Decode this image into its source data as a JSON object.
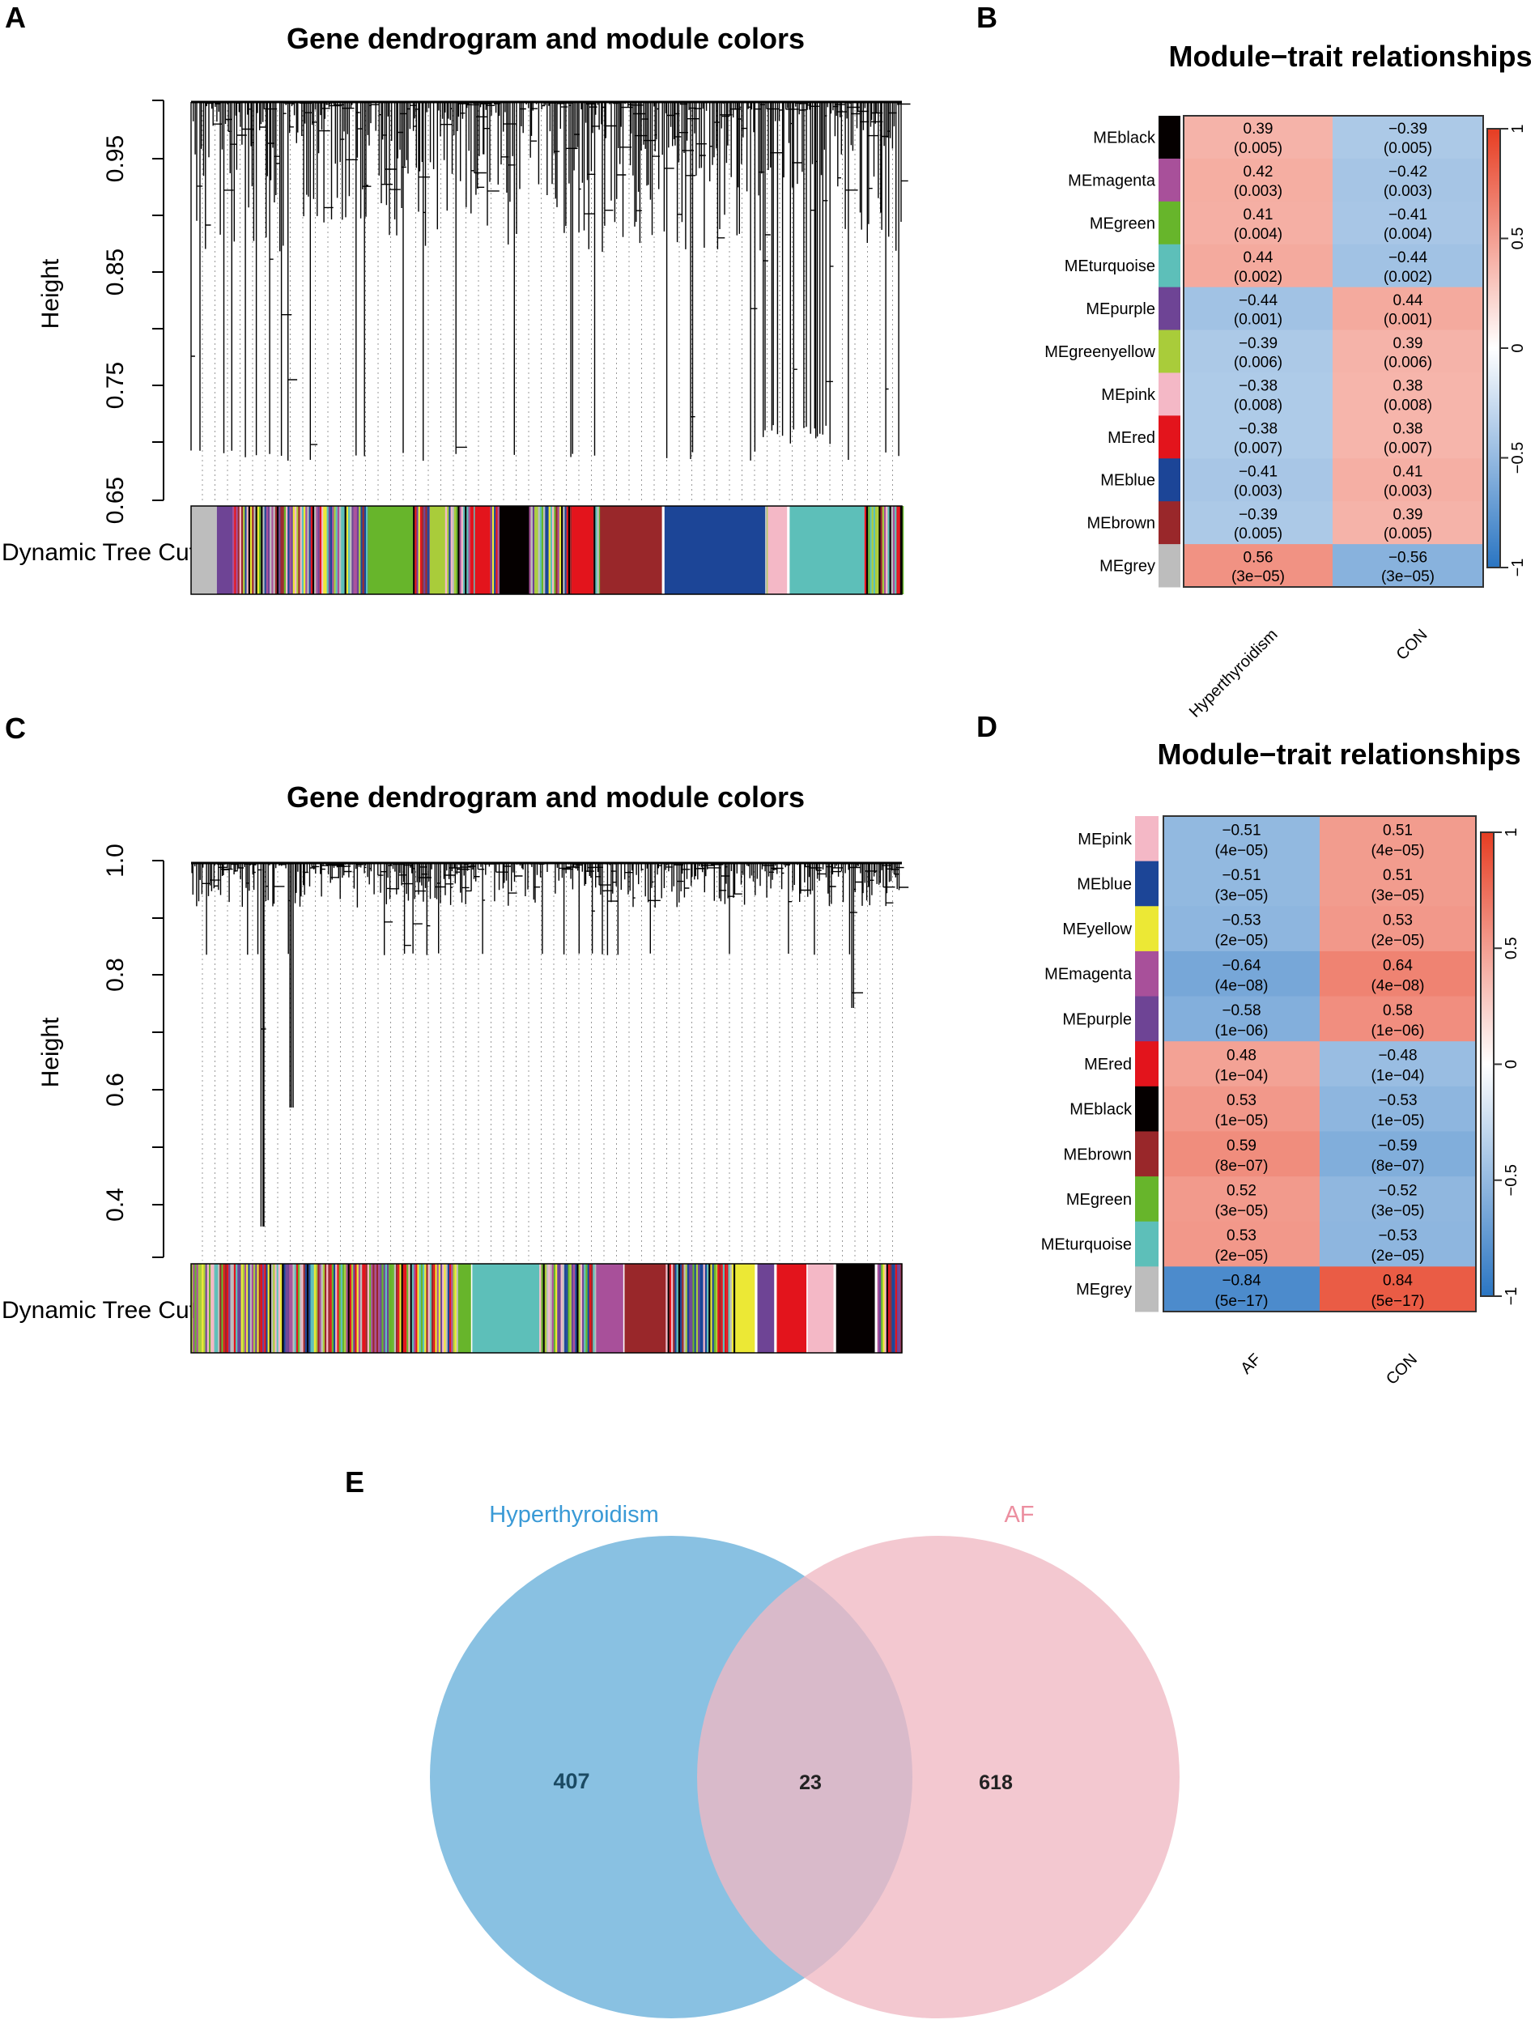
{
  "chart_data": [
    {
      "panel": "A",
      "type": "dendrogram",
      "title": "Gene dendrogram and module colors",
      "ylabel": "Height",
      "yticks": [
        "0.65",
        "0.75",
        "0.85",
        "0.95"
      ],
      "ylim": [
        0.65,
        1.0
      ],
      "colorbar_label": "Dynamic Tree Cut"
    },
    {
      "panel": "B",
      "type": "heatmap",
      "title": "Module−trait relationships",
      "columns": [
        "Hyperthyroidism",
        "CON"
      ],
      "rows": [
        {
          "module": "MEblack",
          "color": "#050000",
          "values": [
            "0.39",
            "-0.39"
          ],
          "pvalues": [
            "(0.005)",
            "(0.005)"
          ]
        },
        {
          "module": "MEmagenta",
          "color": "#a8509a",
          "values": [
            "0.42",
            "-0.42"
          ],
          "pvalues": [
            "(0.003)",
            "(0.003)"
          ]
        },
        {
          "module": "MEgreen",
          "color": "#67b52b",
          "values": [
            "0.41",
            "-0.41"
          ],
          "pvalues": [
            "(0.004)",
            "(0.004)"
          ]
        },
        {
          "module": "MEturquoise",
          "color": "#5dbfb9",
          "values": [
            "0.44",
            "-0.44"
          ],
          "pvalues": [
            "(0.002)",
            "(0.002)"
          ]
        },
        {
          "module": "MEpurple",
          "color": "#6e4495",
          "values": [
            "-0.44",
            "0.44"
          ],
          "pvalues": [
            "(0.001)",
            "(0.001)"
          ]
        },
        {
          "module": "MEgreenyellow",
          "color": "#a9cc3a",
          "values": [
            "-0.39",
            "0.39"
          ],
          "pvalues": [
            "(0.006)",
            "(0.006)"
          ]
        },
        {
          "module": "MEpink",
          "color": "#f4b8c6",
          "values": [
            "-0.38",
            "0.38"
          ],
          "pvalues": [
            "(0.008)",
            "(0.008)"
          ]
        },
        {
          "module": "MEred",
          "color": "#e3141c",
          "values": [
            "-0.38",
            "0.38"
          ],
          "pvalues": [
            "(0.007)",
            "(0.007)"
          ]
        },
        {
          "module": "MEblue",
          "color": "#1c4597",
          "values": [
            "-0.41",
            "0.41"
          ],
          "pvalues": [
            "(0.003)",
            "(0.003)"
          ]
        },
        {
          "module": "MEbrown",
          "color": "#99272a",
          "values": [
            "-0.39",
            "0.39"
          ],
          "pvalues": [
            "(0.005)",
            "(0.005)"
          ]
        },
        {
          "module": "MEgrey",
          "color": "#bdbdbd",
          "values": [
            "0.56",
            "-0.56"
          ],
          "pvalues": [
            "(3e−05)",
            "(3e−05)"
          ]
        }
      ],
      "legend": {
        "ticks": [
          "1",
          "0.5",
          "0",
          "−0.5",
          "−1"
        ],
        "range": [
          -1,
          1
        ],
        "low_color": "#2a75c2",
        "high_color": "#e63d22"
      }
    },
    {
      "panel": "C",
      "type": "dendrogram",
      "title": "Gene dendrogram and module colors",
      "ylabel": "Height",
      "yticks": [
        "0.4",
        "0.6",
        "0.8",
        "1.0"
      ],
      "ylim": [
        0.3,
        1.0
      ],
      "colorbar_label": "Dynamic Tree Cut"
    },
    {
      "panel": "D",
      "type": "heatmap",
      "title": "Module−trait relationships",
      "columns": [
        "AF",
        "CON"
      ],
      "rows": [
        {
          "module": "MEpink",
          "color": "#f4b8c6",
          "values": [
            "-0.51",
            "0.51"
          ],
          "pvalues": [
            "(4e−05)",
            "(4e−05)"
          ]
        },
        {
          "module": "MEblue",
          "color": "#1c4597",
          "values": [
            "-0.51",
            "0.51"
          ],
          "pvalues": [
            "(3e−05)",
            "(3e−05)"
          ]
        },
        {
          "module": "MEyellow",
          "color": "#ece835",
          "values": [
            "-0.53",
            "0.53"
          ],
          "pvalues": [
            "(2e−05)",
            "(2e−05)"
          ]
        },
        {
          "module": "MEmagenta",
          "color": "#a8509a",
          "values": [
            "-0.64",
            "0.64"
          ],
          "pvalues": [
            "(4e−08)",
            "(4e−08)"
          ]
        },
        {
          "module": "MEpurple",
          "color": "#6e4495",
          "values": [
            "-0.58",
            "0.58"
          ],
          "pvalues": [
            "(1e−06)",
            "(1e−06)"
          ]
        },
        {
          "module": "MEred",
          "color": "#e3141c",
          "values": [
            "0.48",
            "-0.48"
          ],
          "pvalues": [
            "(1e−04)",
            "(1e−04)"
          ]
        },
        {
          "module": "MEblack",
          "color": "#050000",
          "values": [
            "0.53",
            "-0.53"
          ],
          "pvalues": [
            "(1e−05)",
            "(1e−05)"
          ]
        },
        {
          "module": "MEbrown",
          "color": "#99272a",
          "values": [
            "0.59",
            "-0.59"
          ],
          "pvalues": [
            "(8e−07)",
            "(8e−07)"
          ]
        },
        {
          "module": "MEgreen",
          "color": "#67b52b",
          "values": [
            "0.52",
            "-0.52"
          ],
          "pvalues": [
            "(3e−05)",
            "(3e−05)"
          ]
        },
        {
          "module": "MEturquoise",
          "color": "#5dbfb9",
          "values": [
            "0.53",
            "-0.53"
          ],
          "pvalues": [
            "(2e−05)",
            "(2e−05)"
          ]
        },
        {
          "module": "MEgrey",
          "color": "#bdbdbd",
          "values": [
            "-0.84",
            "0.84"
          ],
          "pvalues": [
            "(5e−17)",
            "(5e−17)"
          ]
        }
      ],
      "legend": {
        "ticks": [
          "1",
          "0.5",
          "0",
          "−0.5",
          "−1"
        ],
        "range": [
          -1,
          1
        ],
        "low_color": "#2a75c2",
        "high_color": "#e63d22"
      }
    },
    {
      "panel": "E",
      "type": "venn",
      "sets": [
        {
          "name": "Hyperthyroidism",
          "only": "407",
          "color": "#89c1e2",
          "label_color": "#3a9ad6"
        },
        {
          "name": "AF",
          "only": "618",
          "color": "#f0b8c3",
          "label_color": "#ec8fa0"
        }
      ],
      "intersection": "23"
    }
  ],
  "panel_labels": [
    "A",
    "B",
    "C",
    "D",
    "E"
  ]
}
